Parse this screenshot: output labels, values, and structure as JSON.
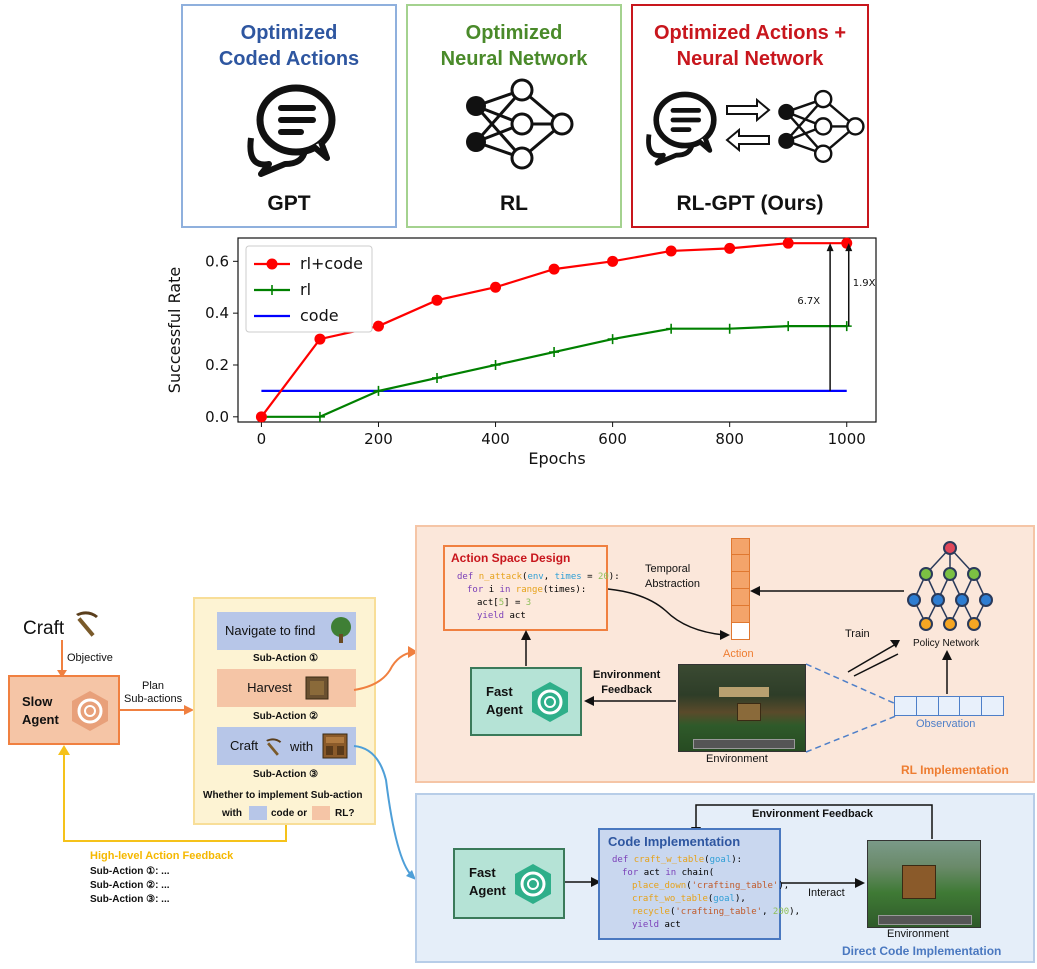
{
  "top_panels": [
    {
      "title": "Optimized\nCoded Actions",
      "label": "GPT",
      "color": "#2e56a0",
      "border": "#8fb0dd"
    },
    {
      "title": "Optimized\nNeural Network",
      "label": "RL",
      "color": "#4a8a2a",
      "border": "#a4d28f"
    },
    {
      "title": "Optimized Actions +\nNeural Network",
      "label": "RL-GPT (Ours)",
      "color": "#c8161d",
      "border": "#c8161d"
    }
  ],
  "chart_data": {
    "type": "line",
    "xlabel": "Epochs",
    "ylabel": "Successful Rate",
    "xlim": [
      -40,
      1050
    ],
    "ylim": [
      -0.02,
      0.69
    ],
    "xticks": [
      0,
      200,
      400,
      600,
      800,
      1000
    ],
    "yticks": [
      0.0,
      0.2,
      0.4,
      0.6
    ],
    "ytick_labels": [
      "0.0",
      "0.2",
      "0.4",
      "0.6"
    ],
    "legend_position": "top-left",
    "series": [
      {
        "name": "rl+code",
        "color": "#ff0000",
        "marker": "circle",
        "x": [
          0,
          100,
          200,
          300,
          400,
          500,
          600,
          700,
          800,
          900,
          1000
        ],
        "y": [
          0.0,
          0.3,
          0.35,
          0.45,
          0.5,
          0.57,
          0.6,
          0.64,
          0.65,
          0.67,
          0.67
        ]
      },
      {
        "name": "rl",
        "color": "#008000",
        "marker": "plus",
        "x": [
          0,
          100,
          200,
          300,
          400,
          500,
          600,
          700,
          800,
          900,
          1000
        ],
        "y": [
          0.0,
          0.0,
          0.1,
          0.15,
          0.2,
          0.25,
          0.3,
          0.34,
          0.34,
          0.35,
          0.35
        ]
      },
      {
        "name": "code",
        "color": "#0000ff",
        "marker": "none",
        "x": [
          0,
          1000
        ],
        "y": [
          0.1,
          0.1
        ]
      }
    ],
    "annotations": [
      {
        "text": "6.7X",
        "x": 975,
        "y_from": 0.1,
        "y_to": 0.67
      },
      {
        "text": "1.9X",
        "x": 1000,
        "y_from": 0.35,
        "y_to": 0.67
      }
    ]
  },
  "diagram": {
    "craft_label": "Craft",
    "objective_label": "Objective",
    "slow_agent": "Slow\nAgent",
    "plan_label": "Plan\nSub-actions",
    "sub_actions": [
      {
        "text": "Navigate to find",
        "caption": "Sub-Action ①"
      },
      {
        "text": "Harvest",
        "caption": "Sub-Action ②"
      },
      {
        "text": "Craft",
        "text2": "with",
        "caption": "Sub-Action ③"
      }
    ],
    "whether_line1": "Whether to implement Sub-action",
    "whether_with": "with",
    "whether_code": "code or",
    "whether_rl": "RL?",
    "hl_feedback_title": "High-level Action Feedback",
    "hl_feedback_items": [
      "Sub-Action ①: ...",
      "Sub-Action ②: ...",
      "Sub-Action ③: ..."
    ],
    "rl": {
      "title": "RL Implementation",
      "action_space_title": "Action Space Design",
      "code_lines": [
        "def n_attack(env, times = 20):",
        "  for i in range(times):",
        "    act[5] = 3",
        "    yield act"
      ],
      "temporal_label": "Temporal\nAbstraction",
      "action_label": "Action",
      "policy_label": "Policy Network",
      "train_label": "Train",
      "observation_label": "Observation",
      "env_feedback_label": "Environment\nFeedback",
      "fast_agent": "Fast\nAgent",
      "environment_label": "Environment"
    },
    "code_impl": {
      "title": "Direct Code Implementation",
      "code_title": "Code Implementation",
      "code_lines": [
        "def craft_w_table(goal):",
        "  for act in chain(",
        "    place_down('crafting_table'),",
        "    craft_wo_table(goal),",
        "    recycle('crafting_table', 200),",
        "    yield act"
      ],
      "env_feedback_label": "Environment Feedback",
      "interact_label": "Interact",
      "fast_agent": "Fast\nAgent",
      "environment_label": "Environment"
    }
  }
}
